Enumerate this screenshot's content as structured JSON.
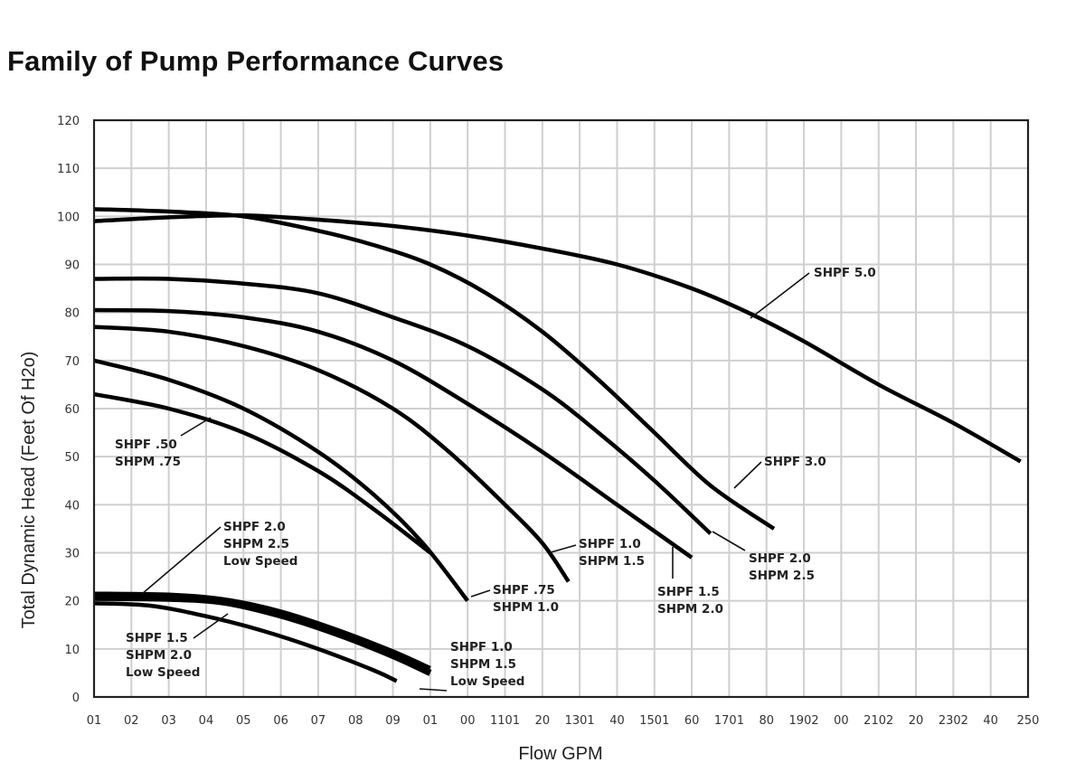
{
  "chart_data": {
    "type": "line",
    "title": "Family of Pump Performance Curves",
    "xlabel": "Flow GPM",
    "ylabel": "Total Dynamic Head (Feet Of H2o)",
    "xlim": [
      0,
      250
    ],
    "ylim": [
      0,
      120
    ],
    "grid": true,
    "x_tick_labels": [
      "01",
      "02",
      "03",
      "04",
      "05",
      "06",
      "07",
      "08",
      "09",
      "01",
      "00",
      "1101",
      "20",
      "1301",
      "40",
      "1501",
      "60",
      "1701",
      "80",
      "1902",
      "00",
      "2102",
      "20",
      "2302",
      "40",
      "250"
    ],
    "y_ticks": [
      0,
      10,
      20,
      30,
      40,
      50,
      60,
      70,
      80,
      90,
      100,
      110,
      120
    ],
    "series": [
      {
        "name": "SHPF 5.0",
        "label_lines": [
          "SHPF 5.0"
        ],
        "weight": "normal",
        "points": [
          [
            0,
            99
          ],
          [
            20,
            99.8
          ],
          [
            40,
            100.2
          ],
          [
            60,
            99.3
          ],
          [
            80,
            98
          ],
          [
            100,
            96
          ],
          [
            120,
            93.3
          ],
          [
            140,
            90
          ],
          [
            160,
            85
          ],
          [
            175,
            80
          ],
          [
            190,
            74
          ],
          [
            210,
            65
          ],
          [
            230,
            57
          ],
          [
            248,
            49
          ]
        ]
      },
      {
        "name": "SHPF 3.0",
        "label_lines": [
          "SHPF 3.0"
        ],
        "weight": "normal",
        "points": [
          [
            0,
            101.5
          ],
          [
            20,
            101
          ],
          [
            40,
            100
          ],
          [
            60,
            97
          ],
          [
            75,
            94
          ],
          [
            90,
            90
          ],
          [
            105,
            84
          ],
          [
            120,
            76
          ],
          [
            135,
            66
          ],
          [
            150,
            55
          ],
          [
            165,
            44
          ],
          [
            182,
            35
          ]
        ]
      },
      {
        "name": "SHPF 2.0 / SHPM 2.5",
        "label_lines": [
          "SHPF 2.0",
          "SHPM 2.5"
        ],
        "weight": "normal",
        "points": [
          [
            0,
            87
          ],
          [
            20,
            87
          ],
          [
            40,
            86
          ],
          [
            60,
            84
          ],
          [
            80,
            79
          ],
          [
            100,
            73
          ],
          [
            120,
            64
          ],
          [
            135,
            55
          ],
          [
            150,
            45
          ],
          [
            165,
            34
          ]
        ]
      },
      {
        "name": "SHPF 1.5 / SHPM 2.0",
        "label_lines": [
          "SHPF 1.5",
          "SHPM 2.0"
        ],
        "weight": "normal",
        "points": [
          [
            0,
            80.5
          ],
          [
            20,
            80.3
          ],
          [
            40,
            79
          ],
          [
            60,
            76
          ],
          [
            80,
            70
          ],
          [
            100,
            61
          ],
          [
            120,
            51
          ],
          [
            140,
            40
          ],
          [
            160,
            29
          ]
        ]
      },
      {
        "name": "SHPF 1.0 / SHPM 1.5",
        "label_lines": [
          "SHPF 1.0",
          "SHPM 1.5"
        ],
        "weight": "normal",
        "points": [
          [
            0,
            77
          ],
          [
            20,
            76
          ],
          [
            40,
            73
          ],
          [
            60,
            68
          ],
          [
            80,
            60
          ],
          [
            95,
            51
          ],
          [
            110,
            40
          ],
          [
            120,
            32
          ],
          [
            127,
            24
          ]
        ]
      },
      {
        "name": "SHPF .75 / SHPM 1.0",
        "label_lines": [
          "SHPF .75",
          "SHPM 1.0"
        ],
        "weight": "normal",
        "points": [
          [
            0,
            70
          ],
          [
            20,
            66
          ],
          [
            40,
            60
          ],
          [
            60,
            51
          ],
          [
            75,
            42
          ],
          [
            88,
            32
          ],
          [
            100,
            20
          ]
        ]
      },
      {
        "name": "SHPF .50 / SHPM .75",
        "label_lines": [
          "SHPF .50",
          "SHPM .75"
        ],
        "weight": "normal",
        "points": [
          [
            0,
            63
          ],
          [
            20,
            60
          ],
          [
            40,
            55
          ],
          [
            60,
            47
          ],
          [
            75,
            39
          ],
          [
            90,
            30
          ]
        ]
      },
      {
        "name": "SHPF 2.0 / SHPM 2.5 Low Speed",
        "label_lines": [
          "SHPF 2.0",
          "SHPM 2.5",
          "Low Speed"
        ],
        "weight": "normal",
        "points": [
          [
            0,
            21.5
          ],
          [
            20,
            21.3
          ],
          [
            35,
            20.3
          ],
          [
            50,
            17.8
          ],
          [
            65,
            14
          ],
          [
            80,
            9.5
          ],
          [
            90,
            6
          ]
        ]
      },
      {
        "name": "SHPF 1.0 / SHPM 1.5 Low Speed",
        "label_lines": [
          "SHPF 1.0",
          "SHPM 1.5",
          "Low Speed"
        ],
        "weight": "thick",
        "points": [
          [
            0,
            20.7
          ],
          [
            20,
            20.5
          ],
          [
            35,
            19.7
          ],
          [
            50,
            17
          ],
          [
            65,
            13.2
          ],
          [
            80,
            8.6
          ],
          [
            90,
            5
          ]
        ]
      },
      {
        "name": "SHPF 1.5 / SHPM 2.0 Low Speed",
        "label_lines": [
          "SHPF 1.5",
          "SHPM 2.0",
          "Low Speed"
        ],
        "weight": "normal",
        "points": [
          [
            0,
            19.5
          ],
          [
            15,
            19
          ],
          [
            30,
            16.8
          ],
          [
            45,
            13.8
          ],
          [
            60,
            10
          ],
          [
            75,
            5.5
          ],
          [
            81,
            3.3
          ]
        ]
      }
    ]
  }
}
